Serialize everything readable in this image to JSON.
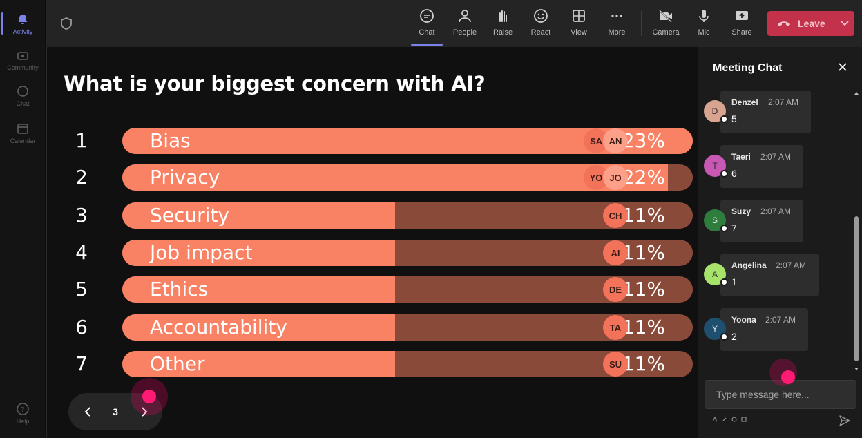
{
  "rail": {
    "items": [
      {
        "label": "Activity",
        "icon": "bell-icon"
      },
      {
        "label": "Community",
        "icon": "community-icon"
      },
      {
        "label": "Chat",
        "icon": "chat-icon"
      },
      {
        "label": "Calendar",
        "icon": "calendar-icon"
      }
    ],
    "help": "Help"
  },
  "toolbar": {
    "chat": "Chat",
    "people": "People",
    "raise": "Raise",
    "react": "React",
    "view": "View",
    "more": "More",
    "camera": "Camera",
    "mic": "Mic",
    "share": "Share",
    "leave": "Leave"
  },
  "poll": {
    "question": "What is your biggest concern with AI?",
    "options": [
      {
        "rank": "1",
        "label": "Bias",
        "percent": "23%",
        "value": 23,
        "avatars": [
          "SA",
          "AN"
        ]
      },
      {
        "rank": "2",
        "label": "Privacy",
        "percent": "22%",
        "value": 22,
        "avatars": [
          "YO",
          "JO"
        ]
      },
      {
        "rank": "3",
        "label": "Security",
        "percent": "11%",
        "value": 11,
        "avatars": [
          "CH"
        ]
      },
      {
        "rank": "4",
        "label": "Job impact",
        "percent": "11%",
        "value": 11,
        "avatars": [
          "AI"
        ]
      },
      {
        "rank": "5",
        "label": "Ethics",
        "percent": "11%",
        "value": 11,
        "avatars": [
          "DE"
        ]
      },
      {
        "rank": "6",
        "label": "Accountability",
        "percent": "11%",
        "value": 11,
        "avatars": [
          "TA"
        ]
      },
      {
        "rank": "7",
        "label": "Other",
        "percent": "11%",
        "value": 11,
        "avatars": [
          "SU"
        ]
      }
    ],
    "page": "3"
  },
  "chat": {
    "title": "Meeting Chat",
    "messages": [
      {
        "initial": "D",
        "name": "Denzel",
        "time": "2:07 AM",
        "text": "5",
        "color": "#d8a48f"
      },
      {
        "initial": "T",
        "name": "Taeri",
        "time": "2:07 AM",
        "text": "6",
        "color": "#c958b4"
      },
      {
        "initial": "S",
        "name": "Suzy",
        "time": "2:07 AM",
        "text": "7",
        "color": "#2f7d3c"
      },
      {
        "initial": "A",
        "name": "Angelina",
        "time": "2:07 AM",
        "text": "1",
        "color": "#a7e36b"
      },
      {
        "initial": "Y",
        "name": "Yoona",
        "time": "2:07 AM",
        "text": "2",
        "color": "#1e4f6e"
      }
    ],
    "placeholder": "Type message here..."
  },
  "colors": {
    "bar_fill": "#f98164",
    "bar_track": "#8a4a3a",
    "leave": "#c4314b",
    "accent": "#7b83eb"
  }
}
